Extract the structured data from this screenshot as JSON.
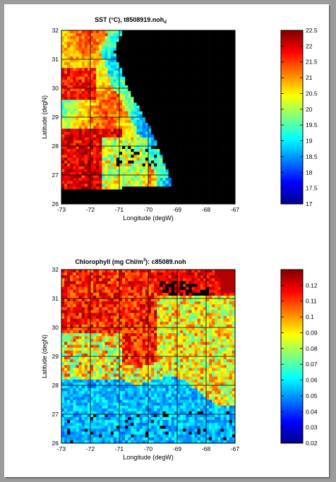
{
  "chart_data": [
    {
      "type": "heatmap",
      "title": "SST (°C), t8508919.noh",
      "title_subscript": "d",
      "xlabel": "Longitude (degW)",
      "ylabel": "Latitude (degN)",
      "xlim": [
        -73,
        -67
      ],
      "ylim": [
        26,
        32
      ],
      "x_ticks": [
        "-73",
        "-72",
        "-71",
        "-70",
        "-69",
        "-68",
        "-67"
      ],
      "y_ticks": [
        "32",
        "31",
        "30",
        "29",
        "28",
        "27",
        "26"
      ],
      "grid": true,
      "colormap": "jet",
      "colorbar": {
        "min": 17,
        "max": 22.5,
        "ticks": [
          "22.5",
          "22",
          "21.5",
          "21",
          "20.5",
          "20",
          "19.5",
          "19",
          "18.5",
          "18",
          "17.5",
          "17"
        ]
      },
      "mask_color": "#000000"
    },
    {
      "type": "heatmap",
      "title_prefix": "Chlorophyll (mg Chl/m",
      "title_sup": "3",
      "title_suffix": "): c85089.noh",
      "xlabel": "Longitude (degW)",
      "ylabel": "Latitude (degN)",
      "xlim": [
        -73,
        -67
      ],
      "ylim": [
        26,
        32
      ],
      "x_ticks": [
        "-73",
        "-72",
        "-71",
        "-70",
        "-69",
        "-68",
        "-67"
      ],
      "y_ticks": [
        "32",
        "31",
        "30",
        "29",
        "28",
        "27",
        "26"
      ],
      "grid": true,
      "colormap": "jet",
      "colorbar": {
        "min": 0.02,
        "max": 0.13,
        "ticks": [
          "0.12",
          "0.11",
          "0.1",
          "0.09",
          "0.08",
          "0.07",
          "0.06",
          "0.05",
          "0.04",
          "0.03",
          "0.02"
        ]
      },
      "mask_color": "#000000"
    }
  ]
}
